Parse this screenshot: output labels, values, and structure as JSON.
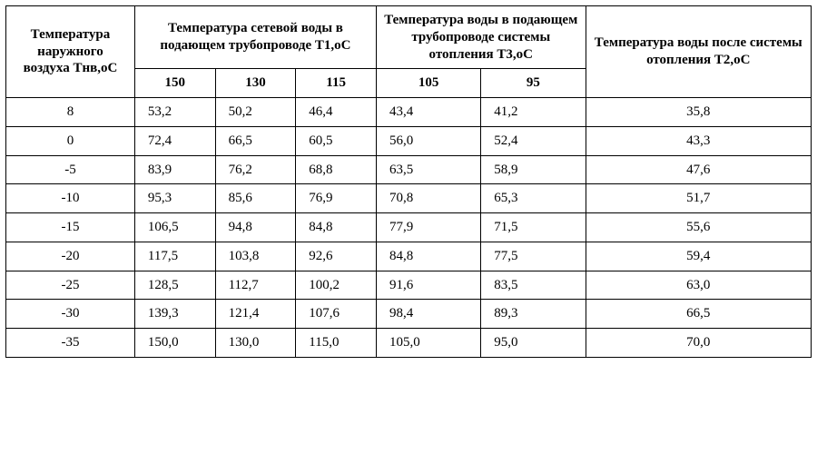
{
  "headers": {
    "col0": "Температура наружного воздуха Тнв,оС",
    "g1": "Температура сетевой воды в подающем трубопроводе Т1,оС",
    "g2": "Температура воды в подающем трубопроводе системы отопления Т3,оС",
    "col_last": "Температура воды после системы отопления Т2,оС",
    "sub": {
      "a": "150",
      "b": "130",
      "c": "115",
      "d": "105",
      "e": "95"
    }
  },
  "rows": [
    {
      "t": "8",
      "v": [
        "53,2",
        "50,2",
        "46,4",
        "43,4",
        "41,2",
        "35,8"
      ]
    },
    {
      "t": "0",
      "v": [
        "72,4",
        "66,5",
        "60,5",
        "56,0",
        "52,4",
        "43,3"
      ]
    },
    {
      "t": "-5",
      "v": [
        "83,9",
        "76,2",
        "68,8",
        "63,5",
        "58,9",
        "47,6"
      ]
    },
    {
      "t": "-10",
      "v": [
        "95,3",
        "85,6",
        "76,9",
        "70,8",
        "65,3",
        "51,7"
      ]
    },
    {
      "t": "-15",
      "v": [
        "106,5",
        "94,8",
        "84,8",
        "77,9",
        "71,5",
        "55,6"
      ]
    },
    {
      "t": "-20",
      "v": [
        "117,5",
        "103,8",
        "92,6",
        "84,8",
        "77,5",
        "59,4"
      ]
    },
    {
      "t": "-25",
      "v": [
        "128,5",
        "112,7",
        "100,2",
        "91,6",
        "83,5",
        "63,0"
      ]
    },
    {
      "t": "-30",
      "v": [
        "139,3",
        "121,4",
        "107,6",
        "98,4",
        "89,3",
        "66,5"
      ]
    },
    {
      "t": "-35",
      "v": [
        "150,0",
        "130,0",
        "115,0",
        "105,0",
        "95,0",
        "70,0"
      ]
    }
  ],
  "style": {
    "font_family": "Times New Roman",
    "header_fontsize_pt": 11,
    "cell_fontsize_pt": 11,
    "border_color": "#000000",
    "background_color": "#ffffff",
    "text_color": "#000000"
  }
}
